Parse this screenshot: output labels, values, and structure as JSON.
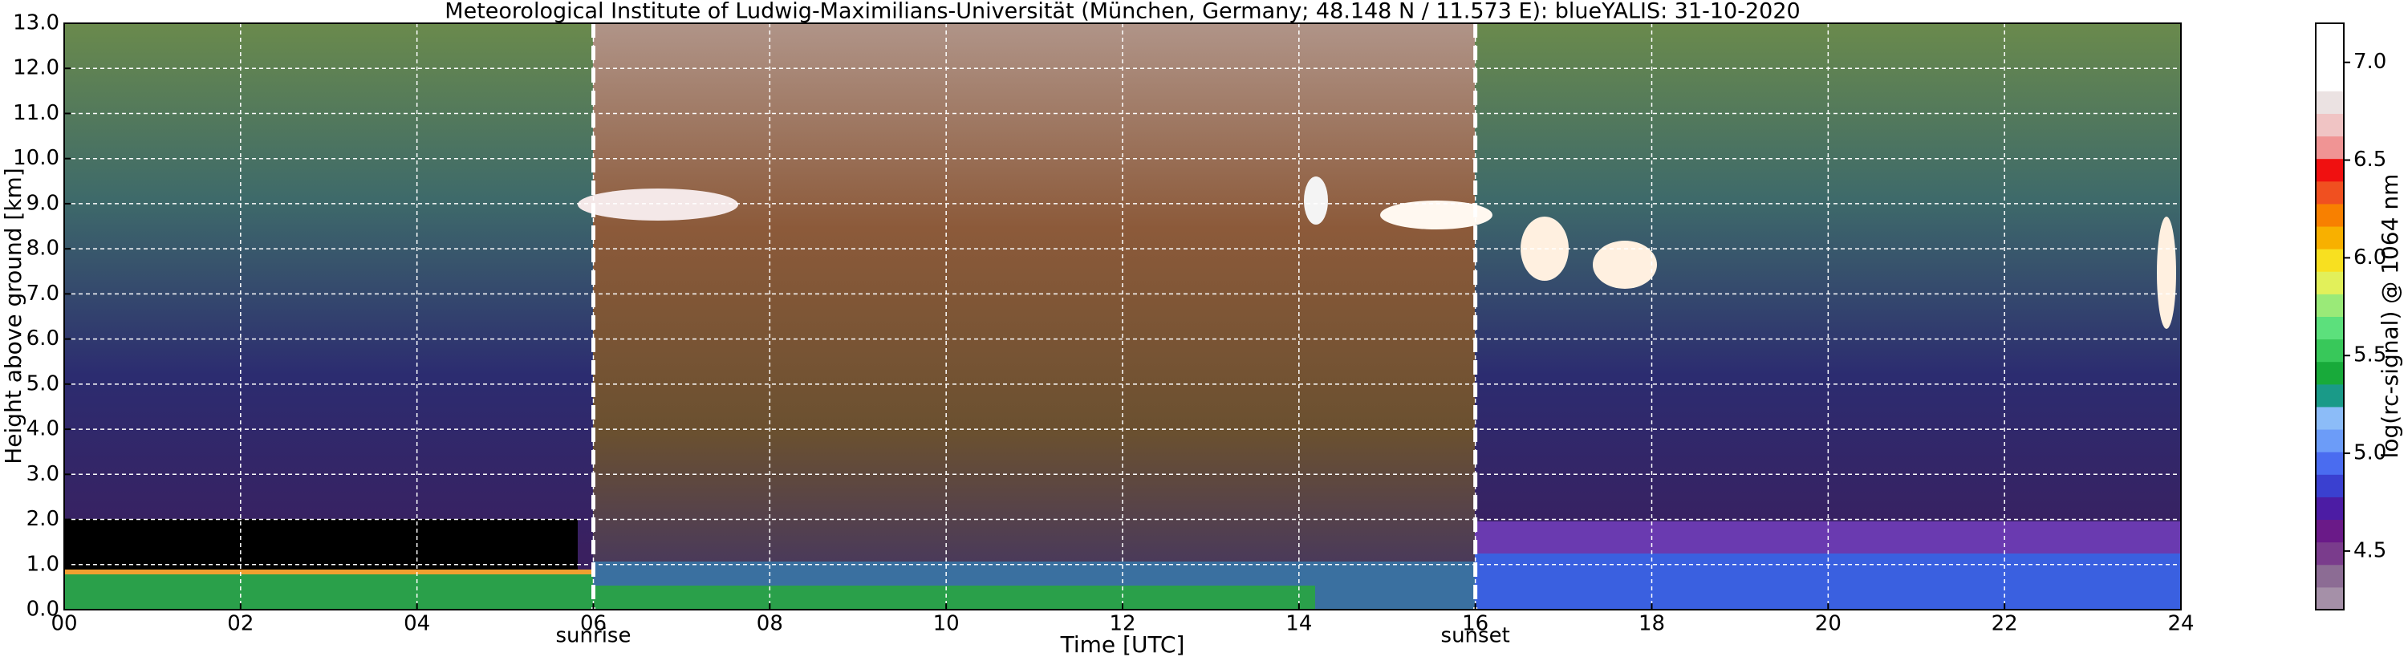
{
  "chart_data": {
    "type": "heatmap",
    "title": "Meteorological Institute of Ludwig-Maximilians-Universität (München, Germany; 48.148 N / 11.573 E):    blueYALIS: 31-10-2020",
    "x_label": "Time [UTC]",
    "y_label": "Height above ground [km]",
    "xlim": [
      0,
      24
    ],
    "xticks": [
      {
        "value": 0,
        "label": "00"
      },
      {
        "value": 2,
        "label": "02"
      },
      {
        "value": 4,
        "label": "04"
      },
      {
        "value": 6,
        "label": "06"
      },
      {
        "value": 8,
        "label": "08"
      },
      {
        "value": 10,
        "label": "10"
      },
      {
        "value": 12,
        "label": "12"
      },
      {
        "value": 14,
        "label": "14"
      },
      {
        "value": 16,
        "label": "16"
      },
      {
        "value": 18,
        "label": "18"
      },
      {
        "value": 20,
        "label": "20"
      },
      {
        "value": 22,
        "label": "22"
      },
      {
        "value": 24,
        "label": "24"
      }
    ],
    "ylim": [
      0,
      13
    ],
    "yticks": [
      {
        "value": 0,
        "label": "0.0"
      },
      {
        "value": 1,
        "label": "1.0"
      },
      {
        "value": 2,
        "label": "2.0"
      },
      {
        "value": 3,
        "label": "3.0"
      },
      {
        "value": 4,
        "label": "4.0"
      },
      {
        "value": 5,
        "label": "5.0"
      },
      {
        "value": 6,
        "label": "6.0"
      },
      {
        "value": 7,
        "label": "7.0"
      },
      {
        "value": 8,
        "label": "8.0"
      },
      {
        "value": 9,
        "label": "9.0"
      },
      {
        "value": 10,
        "label": "10.0"
      },
      {
        "value": 11,
        "label": "11.0"
      },
      {
        "value": 12,
        "label": "12.0"
      },
      {
        "value": 13,
        "label": "13.0"
      }
    ],
    "grid": true,
    "annotations": [
      {
        "text": "sunrise",
        "x": 6
      },
      {
        "text": "sunset",
        "x": 16
      }
    ],
    "colorbar": {
      "label": "log(rc-signal) @ 1064 nm",
      "clim": [
        4.2,
        7.2
      ],
      "ticks": [
        {
          "value": 4.5,
          "label": "4.5"
        },
        {
          "value": 5,
          "label": "5.0"
        },
        {
          "value": 5.5,
          "label": "5.5"
        },
        {
          "value": 6,
          "label": "6.0"
        },
        {
          "value": 6.5,
          "label": "6.5"
        },
        {
          "value": 7,
          "label": "7.0"
        }
      ],
      "colors": [
        "#a590a8",
        "#8c6c94",
        "#7a3c8c",
        "#6a1a88",
        "#4c1ca4",
        "#3a40d0",
        "#4a6cf0",
        "#6c9cf8",
        "#8cbcf8",
        "#1a9a88",
        "#18aa3a",
        "#38c85a",
        "#5ce07c",
        "#9aea78",
        "#e2f05a",
        "#f8e020",
        "#f8b000",
        "#f88000",
        "#f05020",
        "#f01010",
        "#f09494",
        "#f0c4c4",
        "#ebe2e2",
        "#ffffff",
        "#ffffff",
        "#ffffff"
      ]
    }
  }
}
